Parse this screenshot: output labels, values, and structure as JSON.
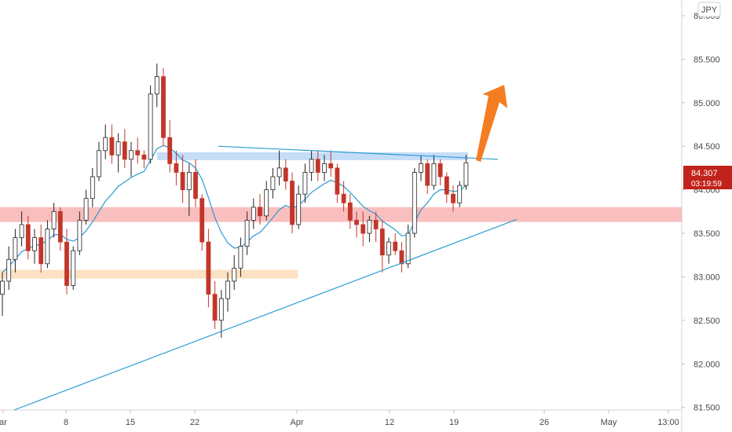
{
  "chart_data": {
    "type": "candlestick",
    "title": "",
    "currency_label": "JPY",
    "y_ticks": [
      "86.000",
      "85.500",
      "85.000",
      "84.500",
      "84.000",
      "83.500",
      "83.000",
      "82.500",
      "82.000",
      "81.500"
    ],
    "x_ticks": [
      "ar",
      "8",
      "15",
      "22",
      "Apr",
      "12",
      "19",
      "26",
      "May",
      "13:00"
    ],
    "ylim": [
      81.47,
      86.18
    ],
    "last_price": "84.307",
    "countdown": "03:19:59",
    "up_color": "#ffffff",
    "down_color": "#c2362a",
    "ma_color": "#2a9bd3",
    "zones": [
      {
        "name": "resistance",
        "low": 84.34,
        "high": 84.43,
        "color": "#b3d1f5"
      },
      {
        "name": "support",
        "low": 83.63,
        "high": 83.8,
        "color": "#f7a8a8"
      },
      {
        "name": "lower-support",
        "low": 82.98,
        "high": 83.08,
        "color": "#fbd7ad"
      }
    ],
    "trendlines": [
      {
        "name": "upper-trendline",
        "from": [
          0,
          84.5
        ],
        "to": [
          1,
          84.35
        ]
      },
      {
        "name": "rising-trendline",
        "from": [
          0,
          81.47
        ],
        "to": [
          1,
          83.66
        ]
      }
    ],
    "arrow_color": "#f47d21",
    "series": [
      {
        "values": [
          [
            82.8,
            83.05,
            82.55,
            82.95
          ],
          [
            82.95,
            83.35,
            82.85,
            83.2
          ],
          [
            83.2,
            83.55,
            83.05,
            83.45
          ],
          [
            83.45,
            83.75,
            83.35,
            83.6
          ],
          [
            83.6,
            83.7,
            83.2,
            83.3
          ],
          [
            83.3,
            83.55,
            83.15,
            83.45
          ],
          [
            83.45,
            83.6,
            83.05,
            83.15
          ],
          [
            83.15,
            83.65,
            83.1,
            83.55
          ],
          [
            83.55,
            83.85,
            83.45,
            83.75
          ],
          [
            83.75,
            83.8,
            83.3,
            83.4
          ],
          [
            83.4,
            83.55,
            82.8,
            82.9
          ],
          [
            82.9,
            83.35,
            82.85,
            83.3
          ],
          [
            83.3,
            83.75,
            83.25,
            83.65
          ],
          [
            83.65,
            84.0,
            83.6,
            83.9
          ],
          [
            83.9,
            84.25,
            83.8,
            84.15
          ],
          [
            84.15,
            84.55,
            84.1,
            84.45
          ],
          [
            84.45,
            84.75,
            84.35,
            84.6
          ],
          [
            84.6,
            84.75,
            84.3,
            84.4
          ],
          [
            84.4,
            84.65,
            84.2,
            84.55
          ],
          [
            84.55,
            84.7,
            84.25,
            84.35
          ],
          [
            84.35,
            84.55,
            84.15,
            84.45
          ],
          [
            84.45,
            84.6,
            84.3,
            84.4
          ],
          [
            84.4,
            84.45,
            84.25,
            84.35
          ],
          [
            84.35,
            85.2,
            84.3,
            85.1
          ],
          [
            85.1,
            85.45,
            84.95,
            85.3
          ],
          [
            85.3,
            85.4,
            84.5,
            84.6
          ],
          [
            84.6,
            84.8,
            84.2,
            84.3
          ],
          [
            84.3,
            84.45,
            84.05,
            84.2
          ],
          [
            84.2,
            84.4,
            83.85,
            84.0
          ],
          [
            84.0,
            84.3,
            83.7,
            84.2
          ],
          [
            84.2,
            84.35,
            83.8,
            83.9
          ],
          [
            83.9,
            83.95,
            83.3,
            83.4
          ],
          [
            83.4,
            83.55,
            82.65,
            82.8
          ],
          [
            82.8,
            82.95,
            82.4,
            82.5
          ],
          [
            82.5,
            82.85,
            82.3,
            82.75
          ],
          [
            82.75,
            83.05,
            82.6,
            82.95
          ],
          [
            82.95,
            83.25,
            82.85,
            83.1
          ],
          [
            83.1,
            83.45,
            83.0,
            83.35
          ],
          [
            83.35,
            83.75,
            83.25,
            83.65
          ],
          [
            83.65,
            83.9,
            83.55,
            83.8
          ],
          [
            83.8,
            83.95,
            83.6,
            83.7
          ],
          [
            83.7,
            84.1,
            83.65,
            84.0
          ],
          [
            84.0,
            84.25,
            83.9,
            84.15
          ],
          [
            84.15,
            84.45,
            84.05,
            84.25
          ],
          [
            84.25,
            84.35,
            84.0,
            84.1
          ],
          [
            84.1,
            84.2,
            83.5,
            83.6
          ],
          [
            83.6,
            84.05,
            83.55,
            83.95
          ],
          [
            83.95,
            84.3,
            83.85,
            84.2
          ],
          [
            84.2,
            84.45,
            84.1,
            84.35
          ],
          [
            84.35,
            84.45,
            84.1,
            84.2
          ],
          [
            84.2,
            84.4,
            84.1,
            84.3
          ],
          [
            84.3,
            84.45,
            84.15,
            84.25
          ],
          [
            84.25,
            84.3,
            83.85,
            83.95
          ],
          [
            83.95,
            84.1,
            83.75,
            83.85
          ],
          [
            83.85,
            83.95,
            83.55,
            83.65
          ],
          [
            83.65,
            83.75,
            83.45,
            83.6
          ],
          [
            83.6,
            83.75,
            83.35,
            83.5
          ],
          [
            83.5,
            83.7,
            83.4,
            83.65
          ],
          [
            83.65,
            83.75,
            83.4,
            83.55
          ],
          [
            83.55,
            83.65,
            83.05,
            83.25
          ],
          [
            83.25,
            83.45,
            83.15,
            83.4
          ],
          [
            83.4,
            83.5,
            83.25,
            83.3
          ],
          [
            83.3,
            83.4,
            83.05,
            83.15
          ],
          [
            83.15,
            83.6,
            83.1,
            83.5
          ],
          [
            83.5,
            84.25,
            83.45,
            84.2
          ],
          [
            84.2,
            84.4,
            84.1,
            84.3
          ],
          [
            84.3,
            84.35,
            83.95,
            84.05
          ],
          [
            84.05,
            84.4,
            84.0,
            84.3
          ],
          [
            84.3,
            84.35,
            84.05,
            84.15
          ],
          [
            84.15,
            84.2,
            83.85,
            83.95
          ],
          [
            83.95,
            84.05,
            83.75,
            83.85
          ],
          [
            83.85,
            84.1,
            83.8,
            84.05
          ],
          [
            84.05,
            84.4,
            84.0,
            84.31
          ]
        ]
      },
      {
        "values": [
          83.05,
          83.12,
          83.2,
          83.29,
          83.32,
          83.36,
          83.37,
          83.42,
          83.48,
          83.49,
          83.43,
          83.41,
          83.45,
          83.53,
          83.63,
          83.75,
          83.87,
          83.95,
          84.04,
          84.09,
          84.14,
          84.18,
          84.21,
          84.34,
          84.47,
          84.51,
          84.48,
          84.42,
          84.34,
          84.31,
          84.25,
          84.12,
          83.91,
          83.68,
          83.51,
          83.39,
          83.33,
          83.34,
          83.4,
          83.47,
          83.51,
          83.59,
          83.68,
          83.77,
          83.82,
          83.79,
          83.82,
          83.89,
          83.97,
          84.02,
          84.07,
          84.11,
          84.08,
          84.04,
          83.97,
          83.89,
          83.81,
          83.76,
          83.72,
          83.64,
          83.59,
          83.54,
          83.47,
          83.48,
          83.63,
          83.77,
          83.85,
          83.95,
          84.0,
          84.0,
          83.98,
          83.99,
          84.05
        ]
      }
    ]
  }
}
